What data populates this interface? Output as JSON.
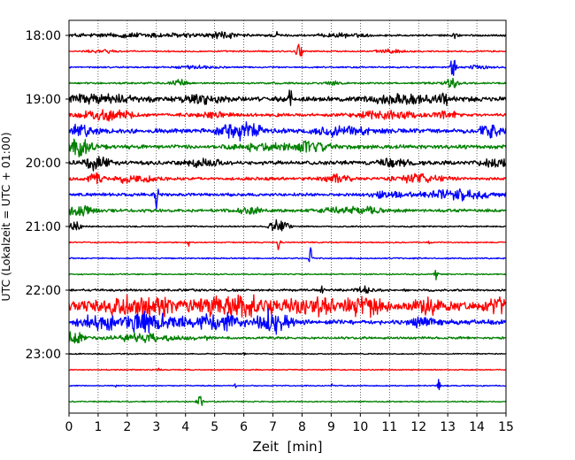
{
  "chart_data": {
    "type": "line",
    "xlabel": "Zeit  [min]",
    "ylabel": "UTC (Lokalzeit = UTC + 01:00)",
    "xlim": [
      0,
      15
    ],
    "x_ticks": [
      0,
      1,
      2,
      3,
      4,
      5,
      6,
      7,
      8,
      9,
      10,
      11,
      12,
      13,
      14,
      15
    ],
    "y_ticks": [
      "18:00",
      "19:00",
      "20:00",
      "21:00",
      "22:00",
      "23:00"
    ],
    "grid": "vertical-dotted",
    "trace_interval_min": 15,
    "trace_colors": [
      "#000000",
      "#ff0000",
      "#0000ff",
      "#008000"
    ],
    "traces": [
      {
        "start": "18:00",
        "color": "#000000",
        "noise": 1.2,
        "bursts": [
          [
            2.6,
            3.2,
            2.5
          ],
          [
            5.3,
            0.3,
            4
          ],
          [
            7.1,
            0.1,
            5
          ],
          [
            9.4,
            0.8,
            2
          ],
          [
            13.3,
            0.1,
            6
          ]
        ]
      },
      {
        "start": "18:15",
        "color": "#ff0000",
        "noise": 1.0,
        "bursts": [
          [
            1.2,
            0.5,
            2
          ],
          [
            7.9,
            0.1,
            12
          ],
          [
            11.0,
            0.5,
            2
          ]
        ]
      },
      {
        "start": "18:30",
        "color": "#0000ff",
        "noise": 1.0,
        "bursts": [
          [
            4.4,
            0.6,
            2
          ],
          [
            13.2,
            0.1,
            14
          ],
          [
            14.0,
            0.4,
            2
          ]
        ]
      },
      {
        "start": "18:45",
        "color": "#008000",
        "noise": 1.2,
        "bursts": [
          [
            3.8,
            0.3,
            4
          ],
          [
            9.0,
            0.2,
            3
          ],
          [
            13.1,
            0.2,
            8
          ]
        ]
      },
      {
        "start": "19:00",
        "color": "#000000",
        "noise": 3.0,
        "bursts": [
          [
            1.0,
            1.4,
            4
          ],
          [
            4.6,
            0.6,
            5
          ],
          [
            7.6,
            0.05,
            14
          ],
          [
            11.4,
            1.0,
            5
          ],
          [
            12.8,
            0.3,
            6
          ]
        ]
      },
      {
        "start": "19:15",
        "color": "#ff0000",
        "noise": 2.0,
        "bursts": [
          [
            1.3,
            0.8,
            7
          ],
          [
            4.9,
            0.6,
            3
          ],
          [
            11.0,
            1.0,
            5
          ],
          [
            13.0,
            0.3,
            4
          ]
        ]
      },
      {
        "start": "19:30",
        "color": "#0000ff",
        "noise": 3.0,
        "bursts": [
          [
            0.4,
            0.5,
            6
          ],
          [
            5.9,
            0.6,
            12
          ],
          [
            9.4,
            0.8,
            5
          ],
          [
            14.5,
            0.4,
            7
          ]
        ]
      },
      {
        "start": "19:45",
        "color": "#008000",
        "noise": 2.5,
        "bursts": [
          [
            0.4,
            0.4,
            10
          ],
          [
            6.5,
            1.2,
            4
          ],
          [
            8.3,
            0.6,
            5
          ]
        ]
      },
      {
        "start": "20:00",
        "color": "#000000",
        "noise": 2.5,
        "bursts": [
          [
            0.9,
            0.4,
            8
          ],
          [
            4.6,
            0.5,
            5
          ],
          [
            11.2,
            0.6,
            4
          ],
          [
            14.6,
            0.4,
            5
          ]
        ]
      },
      {
        "start": "20:15",
        "color": "#ff0000",
        "noise": 2.0,
        "bursts": [
          [
            0.9,
            0.2,
            10
          ],
          [
            2.2,
            0.8,
            4
          ],
          [
            9.2,
            0.5,
            4
          ],
          [
            12.0,
            0.8,
            5
          ]
        ]
      },
      {
        "start": "20:30",
        "color": "#0000ff",
        "noise": 2.0,
        "bursts": [
          [
            3.0,
            0.05,
            28
          ],
          [
            10.9,
            0.6,
            4
          ],
          [
            13.4,
            1.2,
            6
          ]
        ]
      },
      {
        "start": "20:45",
        "color": "#008000",
        "noise": 2.0,
        "bursts": [
          [
            0.4,
            0.4,
            7
          ],
          [
            6.2,
            0.3,
            6
          ],
          [
            9.8,
            1.0,
            4
          ]
        ]
      },
      {
        "start": "21:00",
        "color": "#000000",
        "noise": 0.9,
        "bursts": [
          [
            0.2,
            0.2,
            6
          ],
          [
            7.1,
            0.2,
            8
          ],
          [
            7.4,
            0.2,
            5
          ]
        ]
      },
      {
        "start": "21:15",
        "color": "#ff0000",
        "noise": 0.8,
        "bursts": [
          [
            4.1,
            0.05,
            5
          ],
          [
            7.2,
            0.05,
            12
          ],
          [
            12.4,
            0.05,
            5
          ]
        ]
      },
      {
        "start": "21:30",
        "color": "#0000ff",
        "noise": 0.8,
        "bursts": [
          [
            8.3,
            0.05,
            20
          ]
        ]
      },
      {
        "start": "21:45",
        "color": "#008000",
        "noise": 0.8,
        "bursts": [
          [
            12.6,
            0.05,
            9
          ]
        ]
      },
      {
        "start": "22:00",
        "color": "#000000",
        "noise": 1.5,
        "bursts": [
          [
            8.7,
            0.05,
            10
          ],
          [
            10.1,
            0.3,
            4
          ]
        ]
      },
      {
        "start": "22:15",
        "color": "#ff0000",
        "noise": 5.0,
        "bursts": [
          [
            2.5,
            1.4,
            11
          ],
          [
            5.8,
            1.5,
            10
          ],
          [
            8.3,
            0.6,
            8
          ],
          [
            10.0,
            0.8,
            10
          ],
          [
            12.5,
            0.6,
            8
          ],
          [
            14.7,
            0.3,
            9
          ]
        ]
      },
      {
        "start": "22:30",
        "color": "#0000ff",
        "noise": 3.0,
        "bursts": [
          [
            1.0,
            0.6,
            8
          ],
          [
            2.8,
            1.0,
            12
          ],
          [
            5.2,
            0.8,
            10
          ],
          [
            7.0,
            0.5,
            14
          ],
          [
            12.2,
            0.4,
            7
          ]
        ]
      },
      {
        "start": "22:45",
        "color": "#008000",
        "noise": 1.5,
        "bursts": [
          [
            0.2,
            0.3,
            8
          ],
          [
            2.5,
            1.0,
            5
          ],
          [
            4.5,
            0.3,
            3
          ]
        ]
      },
      {
        "start": "23:00",
        "color": "#000000",
        "noise": 0.7,
        "bursts": [
          [
            6.0,
            0.05,
            3
          ]
        ]
      },
      {
        "start": "23:15",
        "color": "#ff0000",
        "noise": 0.7,
        "bursts": [
          [
            3.1,
            0.05,
            3
          ]
        ]
      },
      {
        "start": "23:30",
        "color": "#0000ff",
        "noise": 0.7,
        "bursts": [
          [
            1.6,
            0.05,
            3
          ],
          [
            5.7,
            0.05,
            3
          ],
          [
            9.0,
            0.05,
            3
          ],
          [
            12.7,
            0.05,
            9
          ]
        ]
      },
      {
        "start": "23:45",
        "color": "#008000",
        "noise": 0.8,
        "bursts": [
          [
            4.5,
            0.1,
            10
          ]
        ]
      }
    ]
  }
}
